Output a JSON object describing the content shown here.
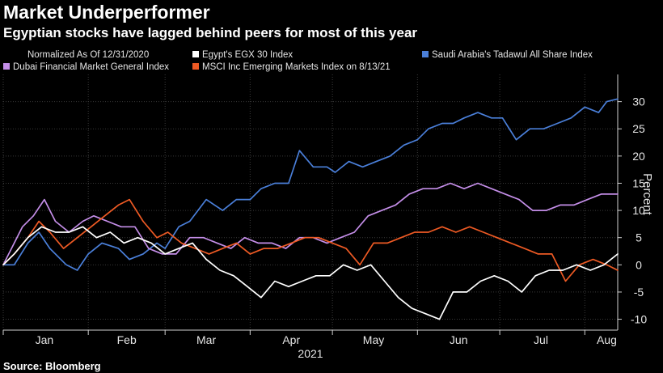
{
  "title": "Market Underperformer",
  "subtitle": "Egyptian stocks have lagged behind peers for most of this year",
  "source": "Source: Bloomberg",
  "chart_data": {
    "type": "line",
    "legend_note": "Normalized As Of 12/31/2020",
    "ylabel": "Percent",
    "year_label": "2021",
    "ylim": [
      -12,
      35
    ],
    "xlim": [
      "2021-01-01",
      "2021-08-13"
    ],
    "yticks": [
      30,
      25,
      20,
      15,
      10,
      5,
      0,
      -5,
      -10
    ],
    "x_ticks": [
      {
        "date": "2021-01-01",
        "label": ""
      },
      {
        "date": "2021-02-01",
        "label": ""
      },
      {
        "date": "2021-03-01",
        "label": ""
      },
      {
        "date": "2021-04-01",
        "label": ""
      },
      {
        "date": "2021-05-01",
        "label": ""
      },
      {
        "date": "2021-06-01",
        "label": ""
      },
      {
        "date": "2021-07-01",
        "label": ""
      },
      {
        "date": "2021-08-01",
        "label": ""
      }
    ],
    "month_labels": [
      {
        "date": "2021-01-16",
        "label": "Jan"
      },
      {
        "date": "2021-02-15",
        "label": "Feb"
      },
      {
        "date": "2021-03-16",
        "label": "Mar"
      },
      {
        "date": "2021-04-16",
        "label": "Apr"
      },
      {
        "date": "2021-05-16",
        "label": "May"
      },
      {
        "date": "2021-06-16",
        "label": "Jun"
      },
      {
        "date": "2021-07-16",
        "label": "Jul"
      },
      {
        "date": "2021-08-09",
        "label": "Aug"
      }
    ],
    "legend": [
      {
        "name": "Egypt's EGX 30 Index",
        "color": "#ffffff"
      },
      {
        "name": "Saudi Arabia's Tadawul All Share Index",
        "color": "#4a7fd9"
      },
      {
        "name": "Dubai Financial Market General Index",
        "color": "#c48ee8"
      },
      {
        "name": "MSCI Inc Emerging Markets Index on 8/13/21",
        "color": "#ee5a24"
      }
    ],
    "series": [
      {
        "name": "Saudi Arabia's Tadawul All Share Index",
        "color": "#4a7fd9",
        "x": [
          "2021-01-01",
          "2021-01-05",
          "2021-01-10",
          "2021-01-14",
          "2021-01-18",
          "2021-01-24",
          "2021-01-28",
          "2021-02-01",
          "2021-02-06",
          "2021-02-12",
          "2021-02-16",
          "2021-02-21",
          "2021-02-26",
          "2021-03-01",
          "2021-03-06",
          "2021-03-10",
          "2021-03-16",
          "2021-03-22",
          "2021-03-27",
          "2021-04-01",
          "2021-04-05",
          "2021-04-10",
          "2021-04-15",
          "2021-04-19",
          "2021-04-24",
          "2021-04-29",
          "2021-05-02",
          "2021-05-07",
          "2021-05-12",
          "2021-05-17",
          "2021-05-22",
          "2021-05-27",
          "2021-06-01",
          "2021-06-05",
          "2021-06-10",
          "2021-06-14",
          "2021-06-18",
          "2021-06-23",
          "2021-06-28",
          "2021-07-02",
          "2021-07-07",
          "2021-07-12",
          "2021-07-17",
          "2021-07-22",
          "2021-07-27",
          "2021-08-01",
          "2021-08-06",
          "2021-08-09",
          "2021-08-13"
        ],
        "values": [
          0,
          0,
          4,
          6,
          3,
          0,
          -1,
          2,
          4,
          3,
          1,
          2,
          4,
          3,
          7,
          8,
          12,
          10,
          12,
          12,
          14,
          15,
          15,
          21,
          18,
          18,
          17,
          19,
          18,
          19,
          20,
          22,
          23,
          25,
          26,
          26,
          27,
          28,
          27,
          27,
          23,
          25,
          25,
          26,
          27,
          29,
          28,
          30,
          30.5
        ]
      },
      {
        "name": "Dubai Financial Market General Index",
        "color": "#c48ee8",
        "x": [
          "2021-01-01",
          "2021-01-04",
          "2021-01-08",
          "2021-01-12",
          "2021-01-16",
          "2021-01-20",
          "2021-01-25",
          "2021-01-30",
          "2021-02-03",
          "2021-02-08",
          "2021-02-13",
          "2021-02-18",
          "2021-02-23",
          "2021-02-28",
          "2021-03-05",
          "2021-03-10",
          "2021-03-15",
          "2021-03-20",
          "2021-03-25",
          "2021-03-30",
          "2021-04-04",
          "2021-04-09",
          "2021-04-14",
          "2021-04-19",
          "2021-04-24",
          "2021-04-29",
          "2021-05-04",
          "2021-05-09",
          "2021-05-14",
          "2021-05-19",
          "2021-05-24",
          "2021-05-29",
          "2021-06-03",
          "2021-06-08",
          "2021-06-13",
          "2021-06-18",
          "2021-06-23",
          "2021-06-28",
          "2021-07-03",
          "2021-07-08",
          "2021-07-13",
          "2021-07-18",
          "2021-07-23",
          "2021-07-28",
          "2021-08-02",
          "2021-08-07",
          "2021-08-13"
        ],
        "values": [
          0,
          3,
          7,
          9,
          12,
          8,
          6,
          8,
          9,
          8,
          7,
          7,
          3,
          2,
          2,
          5,
          5,
          4,
          3,
          5,
          4,
          4,
          3,
          5,
          5,
          4,
          5,
          6,
          9,
          10,
          11,
          13,
          14,
          14,
          15,
          14,
          15,
          14,
          13,
          12,
          10,
          10,
          11,
          11,
          12,
          13,
          13
        ]
      },
      {
        "name": "MSCI Inc Emerging Markets Index on 8/13/21",
        "color": "#ee5a24",
        "x": [
          "2021-01-01",
          "2021-01-05",
          "2021-01-10",
          "2021-01-14",
          "2021-01-18",
          "2021-01-23",
          "2021-01-28",
          "2021-02-02",
          "2021-02-07",
          "2021-02-12",
          "2021-02-16",
          "2021-02-21",
          "2021-02-26",
          "2021-03-02",
          "2021-03-07",
          "2021-03-12",
          "2021-03-17",
          "2021-03-22",
          "2021-03-27",
          "2021-04-01",
          "2021-04-06",
          "2021-04-11",
          "2021-04-16",
          "2021-04-21",
          "2021-04-26",
          "2021-05-01",
          "2021-05-06",
          "2021-05-11",
          "2021-05-16",
          "2021-05-21",
          "2021-05-26",
          "2021-05-31",
          "2021-06-05",
          "2021-06-10",
          "2021-06-15",
          "2021-06-20",
          "2021-06-25",
          "2021-06-30",
          "2021-07-05",
          "2021-07-10",
          "2021-07-15",
          "2021-07-20",
          "2021-07-25",
          "2021-07-30",
          "2021-08-04",
          "2021-08-09",
          "2021-08-13"
        ],
        "values": [
          0,
          2,
          5,
          8,
          6,
          3,
          5,
          7,
          9,
          11,
          12,
          8,
          5,
          6,
          4,
          3,
          2,
          3,
          4,
          2,
          3,
          3,
          4,
          5,
          5,
          4,
          3,
          0,
          4,
          4,
          5,
          6,
          6,
          7,
          6,
          7,
          6,
          5,
          4,
          3,
          2,
          2,
          -3,
          0,
          1,
          0,
          -1
        ]
      },
      {
        "name": "Egypt's EGX 30 Index",
        "color": "#ffffff",
        "x": [
          "2021-01-01",
          "2021-01-05",
          "2021-01-10",
          "2021-01-15",
          "2021-01-20",
          "2021-01-25",
          "2021-01-30",
          "2021-02-04",
          "2021-02-09",
          "2021-02-14",
          "2021-02-19",
          "2021-02-24",
          "2021-03-01",
          "2021-03-06",
          "2021-03-11",
          "2021-03-16",
          "2021-03-21",
          "2021-03-26",
          "2021-03-31",
          "2021-04-05",
          "2021-04-10",
          "2021-04-15",
          "2021-04-20",
          "2021-04-25",
          "2021-04-30",
          "2021-05-05",
          "2021-05-10",
          "2021-05-15",
          "2021-05-20",
          "2021-05-25",
          "2021-05-30",
          "2021-06-04",
          "2021-06-09",
          "2021-06-14",
          "2021-06-19",
          "2021-06-24",
          "2021-06-29",
          "2021-07-04",
          "2021-07-09",
          "2021-07-14",
          "2021-07-19",
          "2021-07-24",
          "2021-07-29",
          "2021-08-03",
          "2021-08-08",
          "2021-08-13"
        ],
        "values": [
          0,
          2,
          5,
          7,
          6,
          6,
          7,
          5,
          6,
          4,
          5,
          4,
          2,
          3,
          4,
          1,
          -1,
          -2,
          -4,
          -6,
          -3,
          -4,
          -3,
          -2,
          -2,
          0,
          -1,
          0,
          -3,
          -6,
          -8,
          -9,
          -10,
          -5,
          -5,
          -3,
          -2,
          -3,
          -5,
          -2,
          -1,
          -1,
          0,
          -1,
          0,
          2
        ]
      }
    ]
  }
}
